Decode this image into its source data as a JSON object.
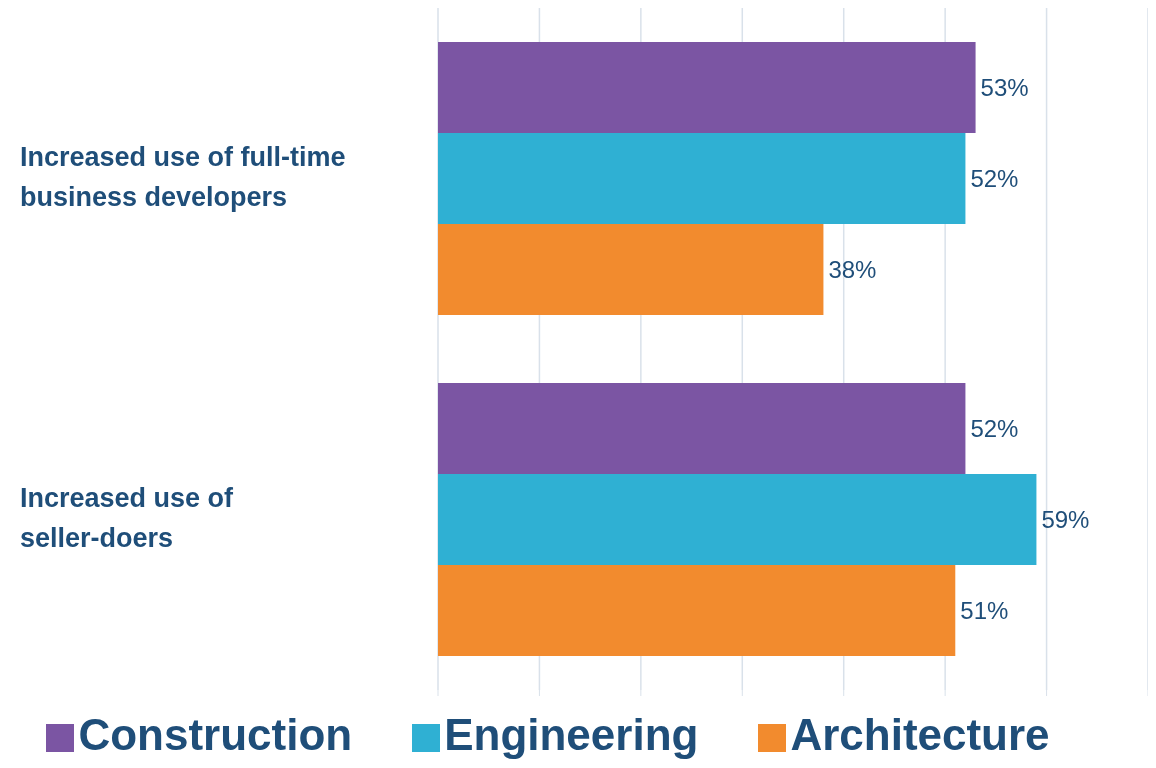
{
  "chart_data": {
    "type": "bar",
    "orientation": "horizontal",
    "categories": [
      "Increased use of full-time business developers",
      "Increased use of seller-doers"
    ],
    "series": [
      {
        "name": "Construction",
        "color": "#7b55a3",
        "values": [
          53,
          52
        ],
        "value_labels": [
          "53%",
          "52%"
        ]
      },
      {
        "name": "Engineering",
        "color": "#2fb0d3",
        "values": [
          52,
          59
        ],
        "value_labels": [
          "52%",
          "59%"
        ]
      },
      {
        "name": "Architecture",
        "color": "#f28b2e",
        "values": [
          38,
          51
        ],
        "value_labels": [
          "38%",
          "51%"
        ]
      }
    ],
    "xlim": [
      0,
      70
    ],
    "grid": "x",
    "legend": "bottom",
    "tick_labels": "y"
  }
}
